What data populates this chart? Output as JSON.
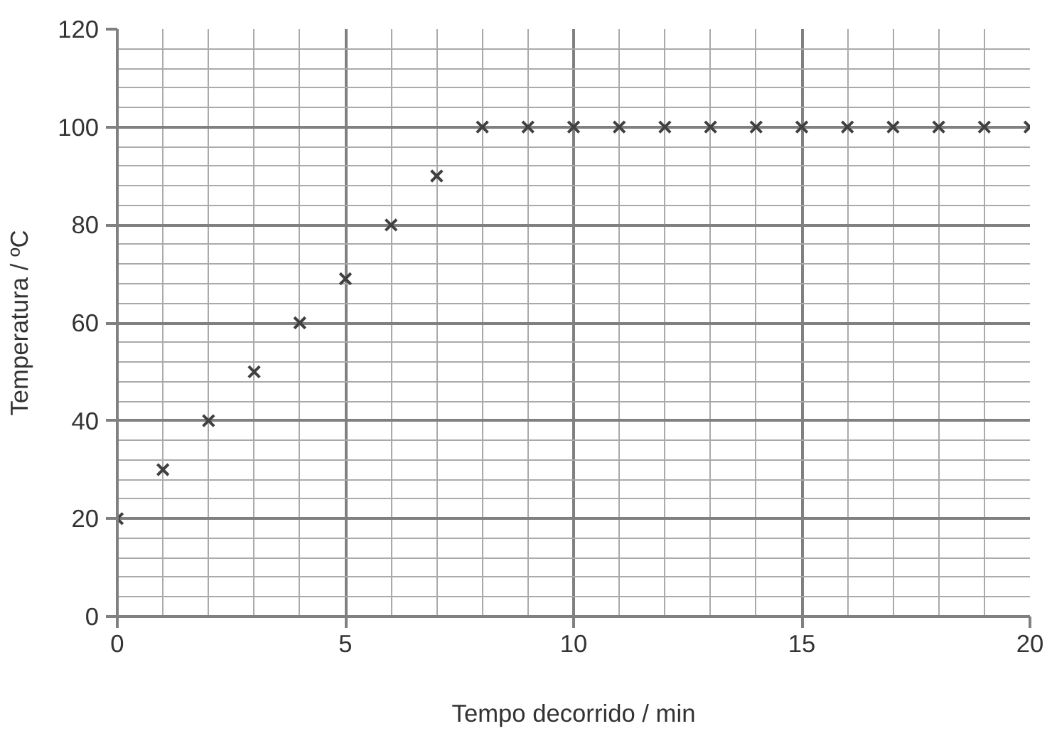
{
  "chart_data": {
    "type": "scatter",
    "xlabel": "Tempo decorrido / min",
    "ylabel": "Temperatura / ºC",
    "x": [
      0,
      1,
      2,
      3,
      4,
      5,
      6,
      7,
      8,
      9,
      10,
      11,
      12,
      13,
      14,
      15,
      16,
      17,
      18,
      19,
      20
    ],
    "series": [
      {
        "color": "#404040",
        "values": [
          20,
          30,
          40,
          50,
          60,
          69,
          80,
          90,
          100,
          100,
          100,
          100,
          100,
          100,
          100,
          100,
          100,
          100,
          100,
          100,
          100
        ]
      }
    ],
    "xlim": [
      0,
      20
    ],
    "ylim": [
      0,
      120
    ],
    "xticks": [
      0,
      5,
      10,
      15,
      20
    ],
    "yticks": [
      0,
      20,
      40,
      60,
      80,
      100,
      120
    ],
    "grid": true,
    "marker": "cross"
  }
}
